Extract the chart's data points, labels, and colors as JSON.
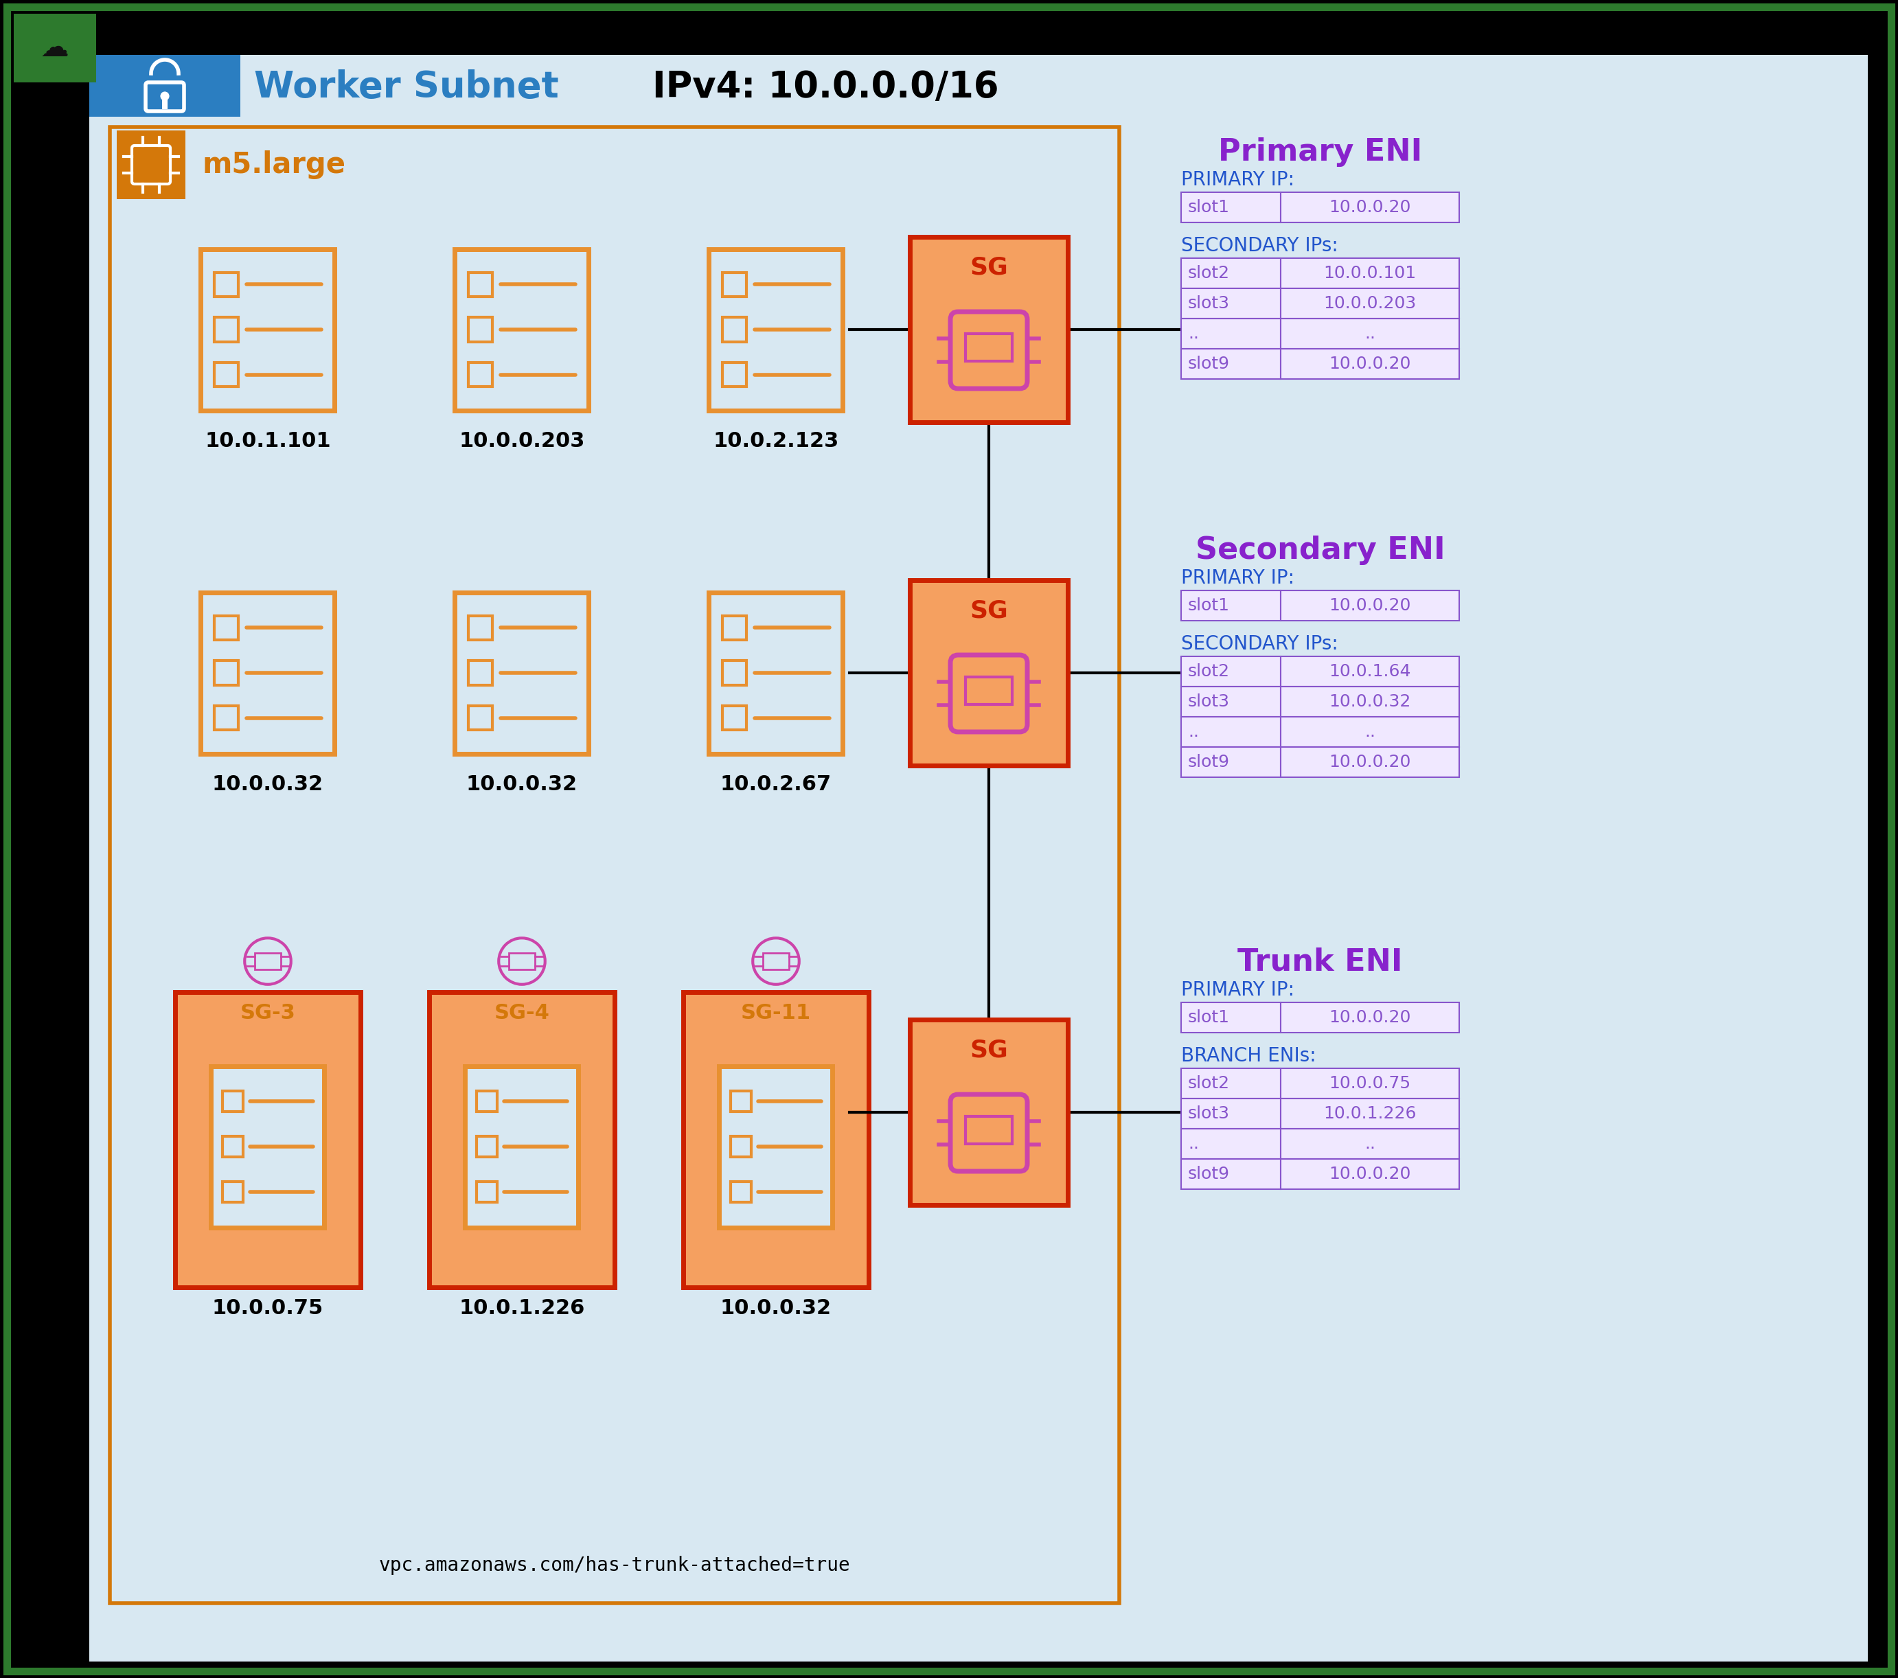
{
  "bg_outer": "#000000",
  "bg_inner": "#d8e8f2",
  "subnet_header_bg": "#2b7ec1",
  "instance_border": "#d4780a",
  "instance_fill": "#d8e8f2",
  "sg_box_border": "#cc2200",
  "sg_box_fill": "#f5a060",
  "eni_icon_color": "#cc44aa",
  "orange": "#d4780a",
  "orange_icon": "#e89030",
  "purple_title": "#8822cc",
  "blue_header": "#2255cc",
  "table_border": "#8855cc",
  "table_fill": "#f0e8ff",
  "green_border": "#2d7a2d",
  "pod_ips_row1": [
    "10.0.1.101",
    "10.0.0.203",
    "10.0.2.123"
  ],
  "pod_ips_row2": [
    "10.0.0.32",
    "10.0.0.32",
    "10.0.2.67"
  ],
  "pod_ips_row3": [
    "10.0.0.75",
    "10.0.1.226",
    "10.0.0.32"
  ],
  "sg_labels": [
    "SG-3",
    "SG-4",
    "SG-11"
  ],
  "primary_eni_title": "Primary ENI",
  "primary_ip_label": "PRIMARY IP:",
  "primary_ip_row": [
    [
      "slot1",
      "10.0.0.20"
    ]
  ],
  "primary_secondary_label": "SECONDARY IPs:",
  "primary_secondary_rows": [
    [
      "slot2",
      "10.0.0.101"
    ],
    [
      "slot3",
      "10.0.0.203"
    ],
    [
      "..",
      ".."
    ],
    [
      "slot9",
      "10.0.0.20"
    ]
  ],
  "secondary_eni_title": "Secondary ENI",
  "secondary_ip_label": "PRIMARY IP:",
  "secondary_ip_row": [
    [
      "slot1",
      "10.0.0.20"
    ]
  ],
  "secondary_secondary_label": "SECONDARY IPs:",
  "secondary_secondary_rows": [
    [
      "slot2",
      "10.0.1.64"
    ],
    [
      "slot3",
      "10.0.0.32"
    ],
    [
      "..",
      ".."
    ],
    [
      "slot9",
      "10.0.0.20"
    ]
  ],
  "trunk_eni_title": "Trunk ENI",
  "trunk_ip_label": "PRIMARY IP:",
  "trunk_ip_row": [
    [
      "slot1",
      "10.0.0.20"
    ]
  ],
  "trunk_branch_label": "BRANCH ENIs:",
  "trunk_branch_rows": [
    [
      "slot2",
      "10.0.0.75"
    ],
    [
      "slot3",
      "10.0.1.226"
    ],
    [
      "..",
      ".."
    ],
    [
      "slot9",
      "10.0.0.20"
    ]
  ],
  "trunk_tag": "vpc.amazonaws.com/has-trunk-attached=true",
  "subnet_title": "Worker Subnet",
  "subnet_ipv4": "IPv4: 10.0.0.0/16",
  "instance_type": "m5.large"
}
